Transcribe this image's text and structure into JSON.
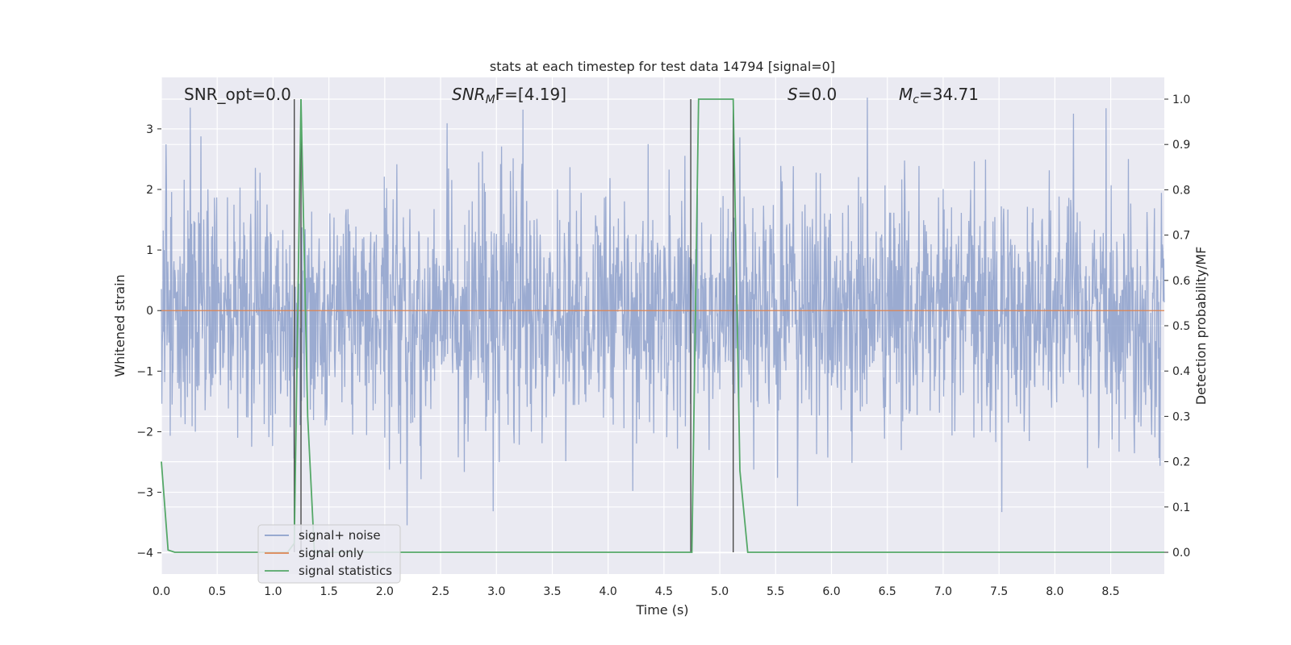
{
  "chart_data": {
    "type": "line",
    "title": "stats at each timestep for test data 14794 [signal=0]",
    "xlabel": "Time (s)",
    "ylabel": "Whitened strain",
    "y2label": "Detection probability/MF",
    "xlim": [
      0,
      8.98
    ],
    "ylim": [
      -4.35,
      3.85
    ],
    "y2lim": [
      -0.048,
      1.048
    ],
    "x_ticks": [
      0.0,
      0.5,
      1.0,
      1.5,
      2.0,
      2.5,
      3.0,
      3.5,
      4.0,
      4.5,
      5.0,
      5.5,
      6.0,
      6.5,
      7.0,
      7.5,
      8.0,
      8.5
    ],
    "y_ticks": [
      -4,
      -3,
      -2,
      -1,
      0,
      1,
      2,
      3
    ],
    "y2_ticks": [
      0.0,
      0.1,
      0.2,
      0.3,
      0.4,
      0.5,
      0.6,
      0.7,
      0.8,
      0.9,
      1.0
    ],
    "grid": true,
    "legend_placement": "lower-left",
    "annotations": {
      "snr_opt": "SNR_opt=0.0",
      "snr_mf_sym": "SNR",
      "snr_mf_sub": "M",
      "snr_mf_rest": "F=[4.19]",
      "s_sym": "S",
      "s_rest": "=0.0",
      "mc_sym": "M",
      "mc_sub": "c",
      "mc_rest": "=34.71"
    },
    "series": [
      {
        "name": "signal+ noise",
        "color": "#8da0cb",
        "axis": "left",
        "kind": "noise",
        "sample_rate_hz": 240,
        "std": 1.0
      },
      {
        "name": "signal only",
        "color": "#dd8452",
        "axis": "left",
        "kind": "constant",
        "value": 0
      },
      {
        "name": "signal statistics",
        "color": "#55a868",
        "axis": "right",
        "x": [
          0.0,
          0.06,
          0.12,
          1.13,
          1.19,
          1.25,
          1.31,
          1.37,
          4.73,
          4.75,
          4.81,
          5.12,
          5.18,
          5.25,
          8.98
        ],
        "y": [
          0.2,
          0.005,
          0.0,
          0.0,
          0.02,
          1.0,
          0.3,
          0.0,
          0.0,
          0.0,
          1.0,
          1.0,
          0.18,
          0.0,
          0.0
        ]
      }
    ],
    "vlines": [
      {
        "x": 1.19,
        "y2_from": 0.0,
        "y2_to": 1.0
      },
      {
        "x": 1.25,
        "y2_from": 0.0,
        "y2_to": 1.0
      },
      {
        "x": 4.74,
        "y2_from": 0.0,
        "y2_to": 1.0
      },
      {
        "x": 5.12,
        "y2_from": 0.0,
        "y2_to": 1.0
      }
    ],
    "vline_color": "#4a4a4a"
  }
}
